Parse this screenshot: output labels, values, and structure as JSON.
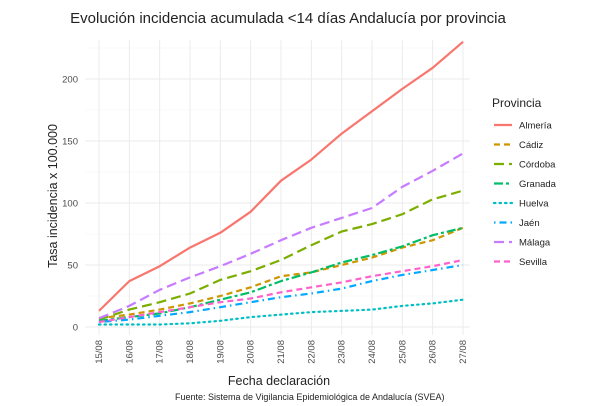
{
  "chart_data": {
    "type": "line",
    "title": "Evolución incidencia acumulada <14 días Andalucía por provincia",
    "xlabel": "Fecha declaración",
    "ylabel": "Tasa incidencia x 100.000",
    "caption": "Fuente: Sistema de Vigilancia Epidemiológica de Andalucía (SVEA)",
    "legend_title": "Provincia",
    "legend_position": "right",
    "grid": true,
    "categories": [
      "15/08",
      "16/08",
      "17/08",
      "18/08",
      "19/08",
      "20/08",
      "21/08",
      "22/08",
      "23/08",
      "24/08",
      "25/08",
      "26/08",
      "27/08"
    ],
    "ylim": [
      0,
      235
    ],
    "yticks": [
      0,
      50,
      100,
      150,
      200
    ],
    "series": [
      {
        "name": "Almería",
        "color": "#F8766D",
        "dash": "solid",
        "values": [
          13,
          37,
          49,
          64,
          76,
          93,
          118,
          135,
          156,
          174,
          192,
          209,
          230
        ]
      },
      {
        "name": "Cádiz",
        "color": "#CD9600",
        "dash": "dashed",
        "values": [
          7,
          10,
          14,
          19,
          25,
          32,
          41,
          44,
          50,
          56,
          64,
          70,
          80
        ]
      },
      {
        "name": "Córdoba",
        "color": "#7CAE00",
        "dash": "longdash",
        "values": [
          6,
          14,
          20,
          27,
          38,
          45,
          54,
          66,
          77,
          83,
          91,
          103,
          110
        ]
      },
      {
        "name": "Granada",
        "color": "#00BE67",
        "dash": "twodash",
        "values": [
          5,
          8,
          11,
          16,
          22,
          28,
          37,
          44,
          52,
          58,
          65,
          74,
          80
        ]
      },
      {
        "name": "Huelva",
        "color": "#00BFC4",
        "dash": "dotted",
        "values": [
          2,
          2,
          2,
          3,
          5,
          8,
          10,
          12,
          13,
          14,
          17,
          19,
          22
        ]
      },
      {
        "name": "Jaén",
        "color": "#00A9FF",
        "dash": "dotdash",
        "values": [
          4,
          6,
          9,
          12,
          16,
          20,
          24,
          27,
          31,
          37,
          42,
          46,
          50
        ]
      },
      {
        "name": "Málaga",
        "color": "#C77CFF",
        "dash": "longdash",
        "values": [
          7,
          17,
          30,
          40,
          49,
          59,
          70,
          80,
          88,
          96,
          113,
          126,
          140
        ]
      },
      {
        "name": "Sevilla",
        "color": "#FF61CC",
        "dash": "dashed",
        "values": [
          4,
          8,
          12,
          16,
          20,
          23,
          28,
          32,
          36,
          41,
          45,
          49,
          54
        ]
      }
    ]
  }
}
